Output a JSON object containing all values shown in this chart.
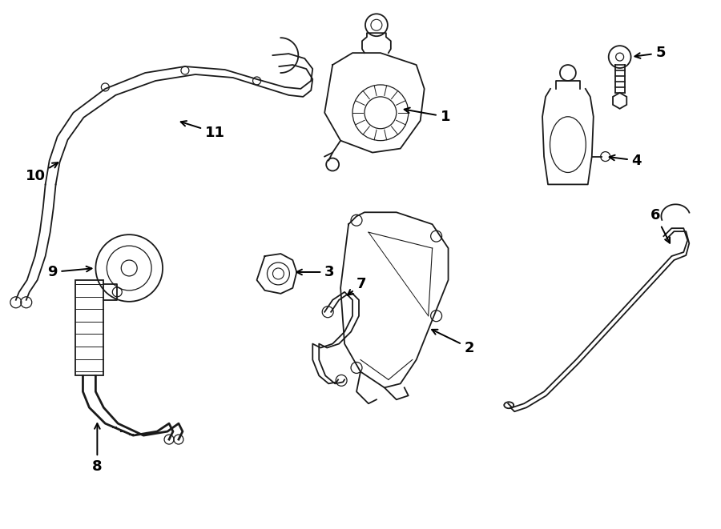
{
  "bg_color": "#ffffff",
  "line_color": "#1a1a1a",
  "label_color": "#000000",
  "figsize": [
    9.0,
    6.61
  ],
  "dpi": 100,
  "lw": 1.3
}
